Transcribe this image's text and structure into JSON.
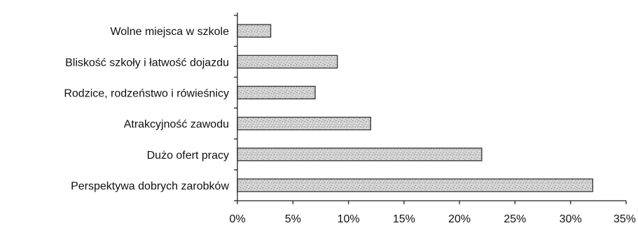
{
  "chart_data": {
    "type": "bar",
    "orientation": "horizontal",
    "categories": [
      "Wolne miejsca w szkole",
      "Bliskość szkoły i łatwość dojazdu",
      "Rodzice, rodzeństwo i rówieśnicy",
      "Atrakcyjność zawodu",
      "Dużo ofert pracy",
      "Perspektywa dobrych zarobków"
    ],
    "values": [
      3,
      9,
      7,
      12,
      22,
      32
    ],
    "unit": "%",
    "xlim": [
      0,
      35
    ],
    "xticks": [
      0,
      5,
      10,
      15,
      20,
      25,
      30,
      35
    ],
    "xtick_labels": [
      "0%",
      "5%",
      "10%",
      "15%",
      "20%",
      "25%",
      "30%",
      "35%"
    ],
    "title": "",
    "xlabel": "",
    "ylabel": "",
    "grid": false,
    "legend": "none",
    "bar_fill": "#d2d2d2",
    "bar_stroke": "#333333"
  }
}
